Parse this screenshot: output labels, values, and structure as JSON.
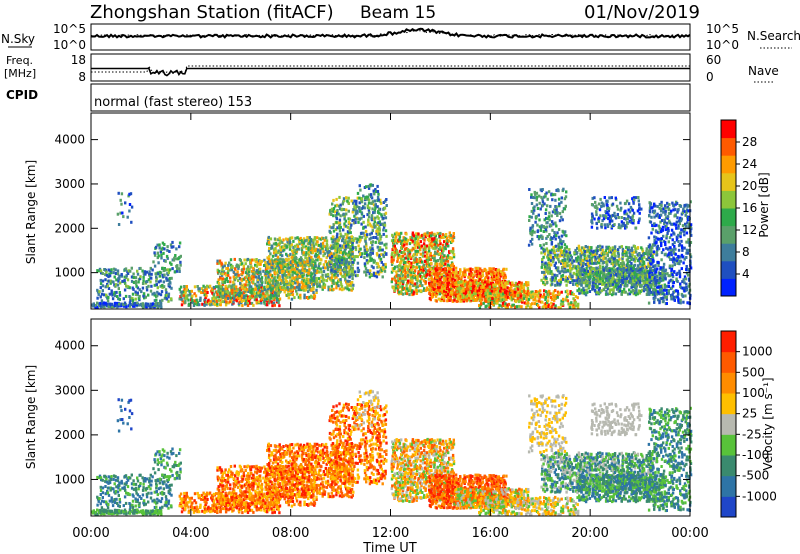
{
  "header": {
    "station": "Zhongshan Station (fitACF)",
    "beam": "Beam 15",
    "date": "01/Nov/2019"
  },
  "nsky_panel": {
    "left_label": "N.Sky",
    "left_ticks": [
      "10^5",
      "10^0"
    ],
    "right_ticks": [
      "10^5",
      "10^0"
    ],
    "right_label": "N.Search"
  },
  "freq_panel": {
    "left_label_1": "Freq.",
    "left_label_2": "[MHz]",
    "left_ticks": [
      "18",
      "8"
    ],
    "right_ticks": [
      "60",
      "0"
    ],
    "right_label": "Nave"
  },
  "cpid_panel": {
    "label": "CPID",
    "mode": "normal (fast stereo) 153"
  },
  "chart_data": [
    {
      "type": "heatmap",
      "name": "power",
      "ylabel": "Slant Range [km]",
      "yticks": [
        "4000",
        "3000",
        "2000",
        "1000"
      ],
      "ytick_values": [
        4000,
        3000,
        2000,
        1000
      ],
      "ylim": [
        180,
        4600
      ],
      "colorbar_label": "Power [dB]",
      "colorbar_ticks": [
        "28",
        "24",
        "20",
        "16",
        "12",
        "8",
        "4"
      ],
      "colors": [
        "#0022ff",
        "#1f4fc0",
        "#3e7d9c",
        "#5aa06a",
        "#2eaa4a",
        "#8cc63a",
        "#e6c41a",
        "#ff9b00",
        "#ff5a00",
        "#ff0000"
      ],
      "clim": [
        0,
        32
      ]
    },
    {
      "type": "heatmap",
      "name": "velocity",
      "ylabel": "Slant Range [km]",
      "yticks": [
        "4000",
        "3000",
        "2000",
        "1000"
      ],
      "ytick_values": [
        4000,
        3000,
        2000,
        1000
      ],
      "ylim": [
        180,
        4600
      ],
      "colorbar_label": "Velocity [m s⁻¹]",
      "colorbar_ticks": [
        "1000",
        "500",
        "100",
        "25",
        "-25",
        "-100",
        "-500",
        "-1000"
      ],
      "colors": [
        "#1f46c8",
        "#2e74a6",
        "#3a8a6e",
        "#58c23a",
        "#b7b9b0",
        "#ffbf00",
        "#ff8c00",
        "#ff5a00",
        "#ff1e00"
      ],
      "xlabel": "Time UT",
      "xticks": [
        "00:00",
        "04:00",
        "08:00",
        "12:00",
        "16:00",
        "20:00",
        "00:00"
      ],
      "xtick_values": [
        0,
        4,
        8,
        12,
        16,
        20,
        24
      ],
      "xlim": [
        0,
        24
      ]
    }
  ]
}
